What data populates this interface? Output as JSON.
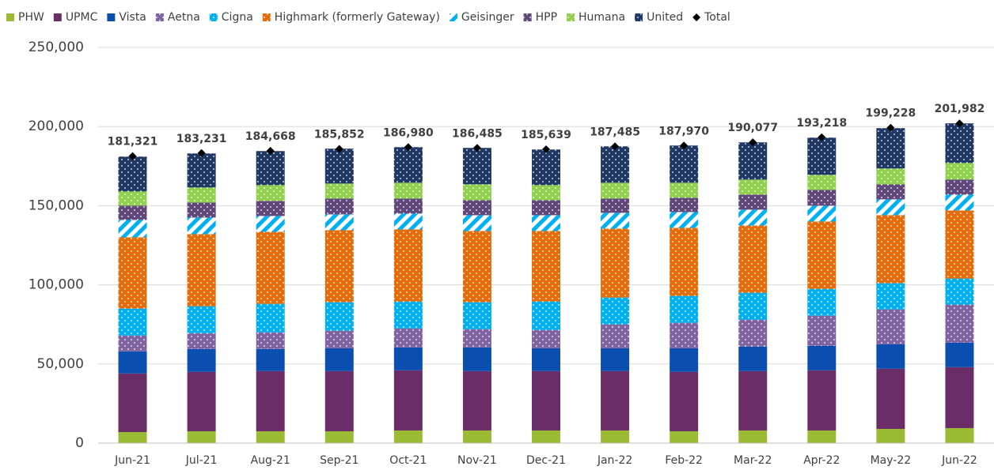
{
  "chart_data": {
    "type": "bar",
    "stacked": true,
    "categories": [
      "Jun-21",
      "Jul-21",
      "Aug-21",
      "Sep-21",
      "Oct-21",
      "Nov-21",
      "Dec-21",
      "Jan-22",
      "Feb-22",
      "Mar-22",
      "Apr-22",
      "May-22",
      "Jun-22"
    ],
    "series": [
      {
        "name": "PHW",
        "color": "#9bbb34",
        "pattern": "solid",
        "values": [
          7000,
          7500,
          7500,
          7500,
          8000,
          8000,
          8000,
          8000,
          7500,
          8000,
          8000,
          9000,
          9500
        ]
      },
      {
        "name": "UPMC",
        "color": "#6b2d67",
        "pattern": "solid",
        "values": [
          37000,
          37500,
          38000,
          38000,
          38000,
          37500,
          37500,
          37500,
          37500,
          37500,
          38000,
          38000,
          38500
        ]
      },
      {
        "name": "Vista",
        "color": "#0a4fb0",
        "pattern": "solid",
        "values": [
          14000,
          14500,
          14000,
          14500,
          14500,
          15000,
          14500,
          14500,
          15000,
          15500,
          15500,
          15500,
          15500
        ]
      },
      {
        "name": "Aetna",
        "color": "#8064a2",
        "pattern": "dots",
        "values": [
          10000,
          10000,
          10500,
          11000,
          12000,
          11500,
          11500,
          15000,
          16000,
          17000,
          19000,
          22000,
          24000
        ]
      },
      {
        "name": "Cigna",
        "color": "#00b0f0",
        "pattern": "dots",
        "values": [
          17000,
          17000,
          18000,
          18000,
          17000,
          17000,
          18000,
          17000,
          17000,
          17000,
          17000,
          16500,
          16500
        ]
      },
      {
        "name": "Highmark (formerly Gateway)",
        "color": "#e46c0a",
        "pattern": "dots",
        "values": [
          45000,
          45500,
          45500,
          45500,
          45500,
          45000,
          44500,
          43500,
          43000,
          42500,
          42500,
          43000,
          43000
        ]
      },
      {
        "name": "Geisinger",
        "color": "#00b0f0",
        "pattern": "stripes",
        "values": [
          11000,
          10500,
          10000,
          10000,
          10000,
          10000,
          10000,
          10000,
          10000,
          10000,
          10000,
          10000,
          10000
        ]
      },
      {
        "name": "HPP",
        "color": "#60497a",
        "pattern": "dots",
        "values": [
          9000,
          9500,
          9500,
          10000,
          9500,
          9500,
          9500,
          9000,
          9000,
          9500,
          10000,
          9500,
          9500
        ]
      },
      {
        "name": "Humana",
        "color": "#92d050",
        "pattern": "dots",
        "values": [
          9000,
          9500,
          10000,
          9500,
          10000,
          10000,
          9500,
          10000,
          9500,
          9500,
          9500,
          10000,
          10500
        ]
      },
      {
        "name": "United",
        "color": "#1f3864",
        "pattern": "dots",
        "values": [
          22000,
          21500,
          21500,
          22000,
          22500,
          23000,
          22500,
          23000,
          23500,
          23500,
          23500,
          25500,
          25000
        ]
      },
      {
        "name": "Total",
        "color": "#000000",
        "marker": "diamond",
        "values": [
          181321,
          183231,
          184668,
          185852,
          186980,
          186485,
          185639,
          187485,
          187970,
          190077,
          193218,
          199228,
          201982
        ],
        "value_labels": [
          "181,321",
          "183,231",
          "184,668",
          "185,852",
          "186,980",
          "186,485",
          "185,639",
          "187,485",
          "187,970",
          "190,077",
          "193,218",
          "199,228",
          "201,982"
        ]
      }
    ],
    "ylim": [
      0,
      250000
    ],
    "yticks": [
      0,
      {
        "value": 50000,
        "label": "50,000"
      },
      {
        "value": 100000,
        "label": "100,000"
      },
      {
        "value": 150000,
        "label": "150,000"
      },
      {
        "value": 200000,
        "label": "200,000"
      },
      {
        "value": 250000,
        "label": "250,000"
      }
    ],
    "grid": true,
    "legend": "top"
  }
}
